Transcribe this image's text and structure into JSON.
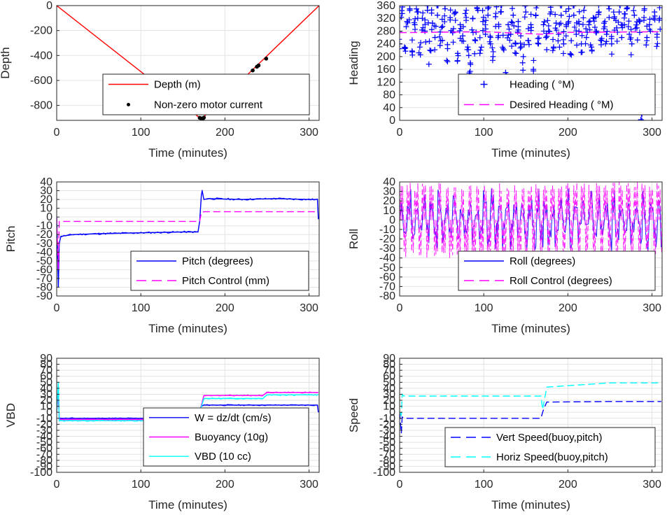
{
  "chart_data": [
    {
      "id": "depth",
      "type": "line",
      "xlabel": "Time (minutes)",
      "ylabel": "Depth",
      "xlim": [
        0,
        312
      ],
      "ylim": [
        -920,
        0
      ],
      "xticks": [
        0,
        100,
        200,
        300
      ],
      "yticks": [
        0,
        -200,
        -400,
        -600,
        -800
      ],
      "grid": true,
      "legend_position": "bottom-right",
      "series": [
        {
          "name": "Depth (m)",
          "style": "line",
          "color": "#ff0000",
          "x": [
            0,
            172,
            312
          ],
          "y": [
            0,
            -910,
            0
          ]
        },
        {
          "name": "Non-zero motor current",
          "style": "dots",
          "color": "#000000",
          "x": [
            170,
            172,
            174,
            175,
            233,
            238,
            240,
            249
          ],
          "y": [
            -900,
            -905,
            -905,
            -898,
            -520,
            -490,
            -480,
            -425
          ]
        }
      ]
    },
    {
      "id": "heading",
      "type": "scatter",
      "xlabel": "Time (minutes)",
      "ylabel": "Heading",
      "xlim": [
        0,
        312
      ],
      "ylim": [
        0,
        360
      ],
      "xticks": [
        0,
        100,
        200,
        300
      ],
      "yticks": [
        0,
        40,
        80,
        120,
        160,
        200,
        240,
        280,
        320,
        360
      ],
      "grid": true,
      "legend_position": "bottom-right",
      "series": [
        {
          "name": "Heading ( °M)",
          "style": "plus",
          "color": "#0000ff",
          "x": [
            0,
            3,
            6,
            9,
            12,
            15,
            18,
            21,
            24,
            27,
            30,
            33,
            36,
            39,
            42,
            45,
            48,
            51,
            54,
            57,
            60,
            63,
            66,
            69,
            72,
            75,
            78,
            81,
            84,
            87,
            90,
            93,
            96,
            99,
            102,
            105,
            108,
            111,
            114,
            117,
            120,
            123,
            126,
            129,
            132,
            135,
            138,
            141,
            144,
            147,
            150,
            153,
            156,
            159,
            162,
            165,
            168,
            171,
            174,
            177,
            180,
            183,
            186,
            189,
            192,
            195,
            198,
            201,
            204,
            207,
            210,
            213,
            216,
            219,
            222,
            225,
            228,
            231,
            234,
            237,
            240,
            243,
            246,
            249,
            252,
            255,
            258,
            261,
            264,
            267,
            270,
            273,
            276,
            279,
            282,
            285,
            288,
            291,
            294,
            297,
            300,
            303,
            306,
            309
          ],
          "y": [
            240,
            335,
            225,
            310,
            350,
            215,
            300,
            340,
            230,
            320,
            280,
            345,
            220,
            305,
            260,
            330,
            235,
            295,
            350,
            225,
            315,
            275,
            340,
            210,
            300,
            265,
            335,
            230,
            180,
            320,
            250,
            345,
            220,
            310,
            270,
            330,
            240,
            200,
            325,
            260,
            340,
            225,
            150,
            300,
            270,
            330,
            240,
            310,
            265,
            200,
            340,
            250,
            300,
            160,
            330,
            240,
            120,
            300,
            260,
            280,
            340,
            230,
            305,
            270,
            330,
            240,
            300,
            350,
            250,
            330,
            270,
            310,
            240,
            345,
            260,
            300,
            230,
            320,
            280,
            340,
            250,
            305,
            270,
            350,
            240,
            320,
            290,
            340,
            260,
            300,
            350,
            270,
            240,
            330,
            290,
            310,
            20,
            350,
            260,
            300,
            50,
            340,
            270,
            320
          ]
        },
        {
          "name": "Desired Heading ( °M)",
          "style": "dashed",
          "color": "#ff00ff",
          "x": [
            0,
            100,
            170,
            200,
            312
          ],
          "y": [
            275,
            278,
            270,
            276,
            278
          ]
        }
      ]
    },
    {
      "id": "pitch",
      "type": "line",
      "xlabel": "Time (minutes)",
      "ylabel": "Pitch",
      "xlim": [
        0,
        312
      ],
      "ylim": [
        -90,
        40
      ],
      "xticks": [
        0,
        100,
        200,
        300
      ],
      "yticks": [
        40,
        30,
        20,
        10,
        0,
        -10,
        -20,
        -30,
        -40,
        -50,
        -60,
        -70,
        -80,
        -90
      ],
      "grid": true,
      "legend_position": "bottom-right",
      "series": [
        {
          "name": "Pitch (degrees)",
          "style": "line",
          "color": "#0000ff",
          "x": [
            0,
            2,
            3,
            5,
            20,
            50,
            100,
            150,
            168,
            170,
            172,
            173,
            175,
            180,
            220,
            260,
            300,
            310,
            311
          ],
          "y": [
            0,
            -80,
            -30,
            -22,
            -20,
            -19,
            -18,
            -17,
            -17,
            -5,
            25,
            30,
            20,
            21,
            20,
            21,
            20,
            20,
            -2
          ]
        },
        {
          "name": "Pitch Control (mm)",
          "style": "dashed",
          "color": "#ff00ff",
          "x": [
            0,
            2,
            3,
            5,
            100,
            168,
            170,
            172,
            175,
            250,
            311
          ],
          "y": [
            0,
            -60,
            -5,
            -5,
            -5,
            -5,
            -5,
            5,
            6,
            6,
            6
          ]
        }
      ]
    },
    {
      "id": "roll",
      "type": "line",
      "xlabel": "Time (minutes)",
      "ylabel": "Roll",
      "xlim": [
        0,
        312
      ],
      "ylim": [
        -80,
        40
      ],
      "xticks": [
        0,
        100,
        200,
        300
      ],
      "yticks": [
        40,
        30,
        20,
        10,
        0,
        -10,
        -20,
        -30,
        -40,
        -50,
        -60,
        -70,
        -80
      ],
      "grid": true,
      "legend_position": "bottom-right",
      "series": [
        {
          "name": "Roll (degrees)",
          "style": "line",
          "color": "#0000ff",
          "x": [
            0,
            312
          ],
          "y": [
            0,
            0
          ]
        },
        {
          "name": "Roll Control (degrees)",
          "style": "dashed",
          "color": "#ff00ff",
          "x": [
            0,
            312
          ],
          "y": [
            0,
            0
          ]
        }
      ]
    },
    {
      "id": "vbd",
      "type": "line",
      "xlabel": "Time (minutes)",
      "ylabel": "VBD",
      "xlim": [
        0,
        312
      ],
      "ylim": [
        -100,
        90
      ],
      "xticks": [
        0,
        100,
        200,
        300
      ],
      "yticks": [
        90,
        80,
        70,
        60,
        50,
        40,
        30,
        20,
        10,
        0,
        -10,
        -20,
        -30,
        -40,
        -50,
        -60,
        -70,
        -80,
        -90,
        -100
      ],
      "grid": true,
      "legend_position": "bottom-right",
      "series": [
        {
          "name": "W = dz/dt (cm/s)",
          "style": "line",
          "color": "#0000ff",
          "x": [
            0,
            2,
            3,
            100,
            168,
            170,
            172,
            175,
            250,
            310,
            311
          ],
          "y": [
            0,
            40,
            -10,
            -10,
            -9,
            0,
            10,
            12,
            12,
            12,
            0
          ]
        },
        {
          "name": "Buoyancy (10g)",
          "style": "line",
          "color": "#ff00ff",
          "x": [
            0,
            2,
            3,
            100,
            168,
            170,
            175,
            245,
            250,
            311
          ],
          "y": [
            0,
            30,
            -12,
            -12,
            -12,
            0,
            28,
            28,
            33,
            33
          ]
        },
        {
          "name": "VBD (10 cc)",
          "style": "line",
          "color": "#00ffff",
          "x": [
            0,
            2,
            3,
            100,
            168,
            170,
            175,
            245,
            250,
            311
          ],
          "y": [
            0,
            50,
            -14,
            -14,
            -14,
            0,
            23,
            23,
            29,
            29
          ]
        }
      ]
    },
    {
      "id": "speed",
      "type": "line",
      "xlabel": "Time (minutes)",
      "ylabel": "Speed",
      "xlim": [
        0,
        312
      ],
      "ylim": [
        -100,
        90
      ],
      "xticks": [
        0,
        100,
        200,
        300
      ],
      "yticks": [
        90,
        80,
        70,
        60,
        50,
        40,
        30,
        20,
        10,
        0,
        -10,
        -20,
        -30,
        -40,
        -50,
        -60,
        -70,
        -80,
        -90,
        -100
      ],
      "grid": true,
      "legend_position": "bottom-right",
      "series": [
        {
          "name": "Vert Speed(buoy,pitch)",
          "style": "dashed",
          "color": "#0000ff",
          "x": [
            0,
            2,
            3,
            5,
            100,
            168,
            170,
            172,
            175,
            250,
            311
          ],
          "y": [
            0,
            -35,
            -8,
            -10,
            -10,
            -10,
            0,
            8,
            17,
            18,
            18
          ]
        },
        {
          "name": "Horiz Speed(buoy,pitch)",
          "style": "dashed",
          "color": "#00ffff",
          "x": [
            0,
            2,
            3,
            5,
            100,
            168,
            170,
            172,
            175,
            250,
            311
          ],
          "y": [
            0,
            -5,
            30,
            27,
            27,
            27,
            5,
            20,
            42,
            49,
            49
          ]
        }
      ]
    }
  ]
}
